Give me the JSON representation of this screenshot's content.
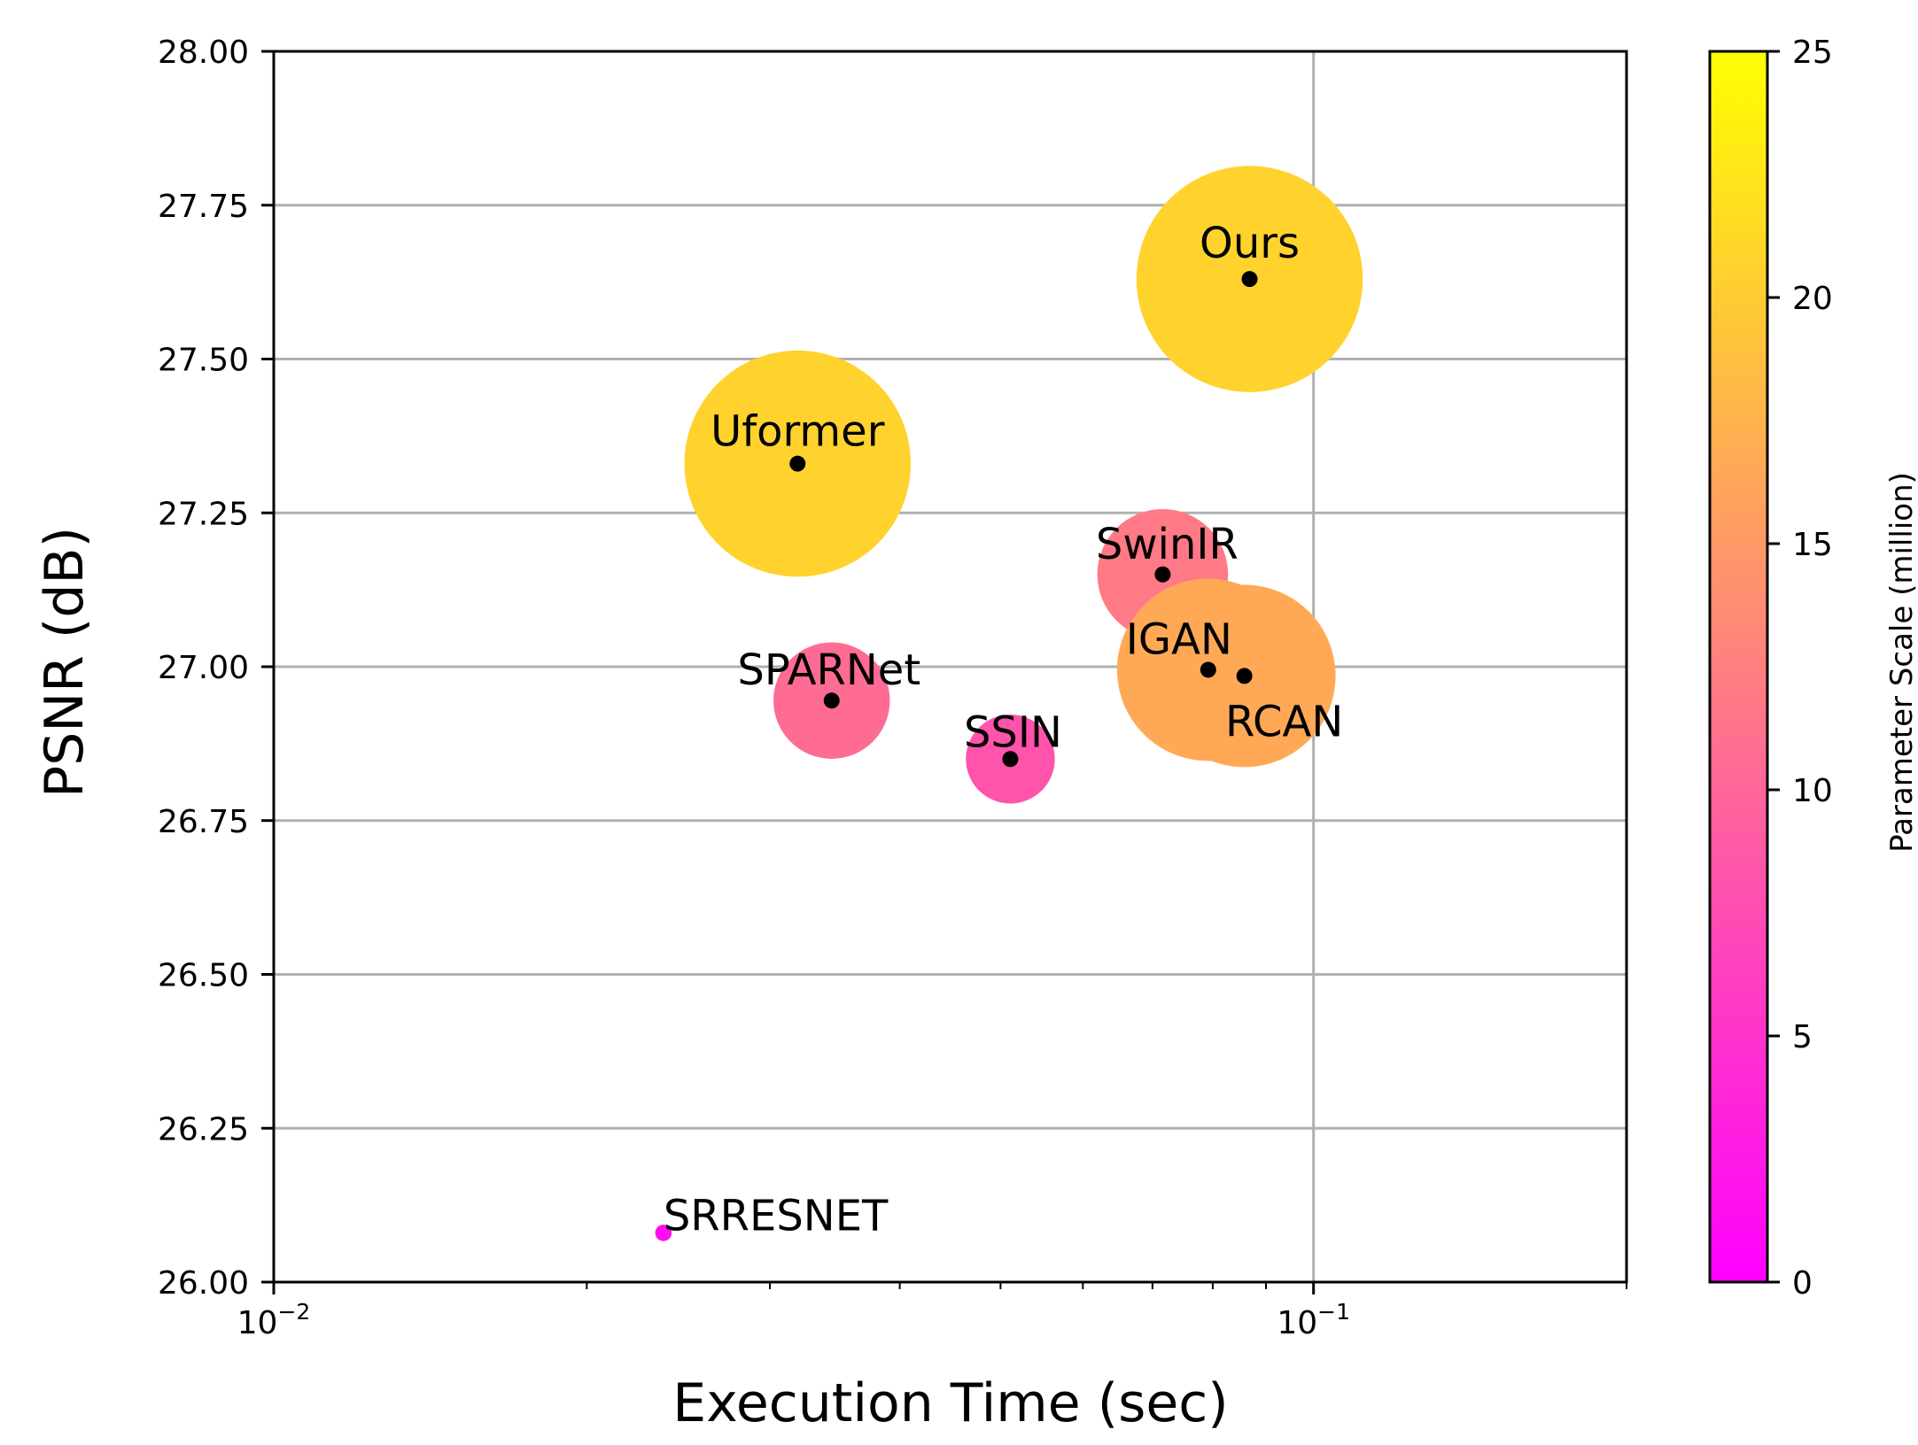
{
  "chart_data": {
    "type": "scatter",
    "xlabel": "Execution Time (sec)",
    "ylabel": "PSNR (dB)",
    "xscale": "log",
    "xlim": [
      0.01,
      0.2
    ],
    "ylim": [
      26.0,
      28.0
    ],
    "x_tick_labels": [
      {
        "value": 0.01,
        "base": "10",
        "exp": "−2"
      },
      {
        "value": 0.1,
        "base": "10",
        "exp": "−1"
      }
    ],
    "y_ticks": [
      26.0,
      26.25,
      26.5,
      26.75,
      27.0,
      27.25,
      27.5,
      27.75,
      28.0
    ],
    "y_tick_labels": [
      "26.00",
      "26.25",
      "26.50",
      "26.75",
      "27.00",
      "27.25",
      "27.50",
      "27.75",
      "28.00"
    ],
    "grid": true,
    "colorbar": {
      "label": "Parameter Scale (million)",
      "range": [
        0,
        25
      ],
      "ticks": [
        0,
        5,
        10,
        15,
        20,
        25
      ],
      "tick_labels": [
        "0",
        "5",
        "10",
        "15",
        "20",
        "25"
      ],
      "colormap": "spring",
      "colors": [
        "#ff00ff",
        "#ffff00"
      ]
    },
    "points": [
      {
        "name": "SRRESNET",
        "time": 0.0237,
        "psnr": 26.08,
        "params": 1.5
      },
      {
        "name": "Uformer",
        "time": 0.0319,
        "psnr": 27.33,
        "params": 20.6
      },
      {
        "name": "SPARNet",
        "time": 0.0344,
        "psnr": 26.945,
        "params": 10.6
      },
      {
        "name": "SSIN",
        "time": 0.0511,
        "psnr": 26.85,
        "params": 8.1
      },
      {
        "name": "SwinIR",
        "time": 0.0716,
        "psnr": 27.15,
        "params": 11.9
      },
      {
        "name": "IGAN",
        "time": 0.0792,
        "psnr": 26.995,
        "params": 16.6
      },
      {
        "name": "RCAN",
        "time": 0.0858,
        "psnr": 26.985,
        "params": 16.6
      },
      {
        "name": "Ours",
        "time": 0.0868,
        "psnr": 27.63,
        "params": 20.6
      }
    ]
  }
}
